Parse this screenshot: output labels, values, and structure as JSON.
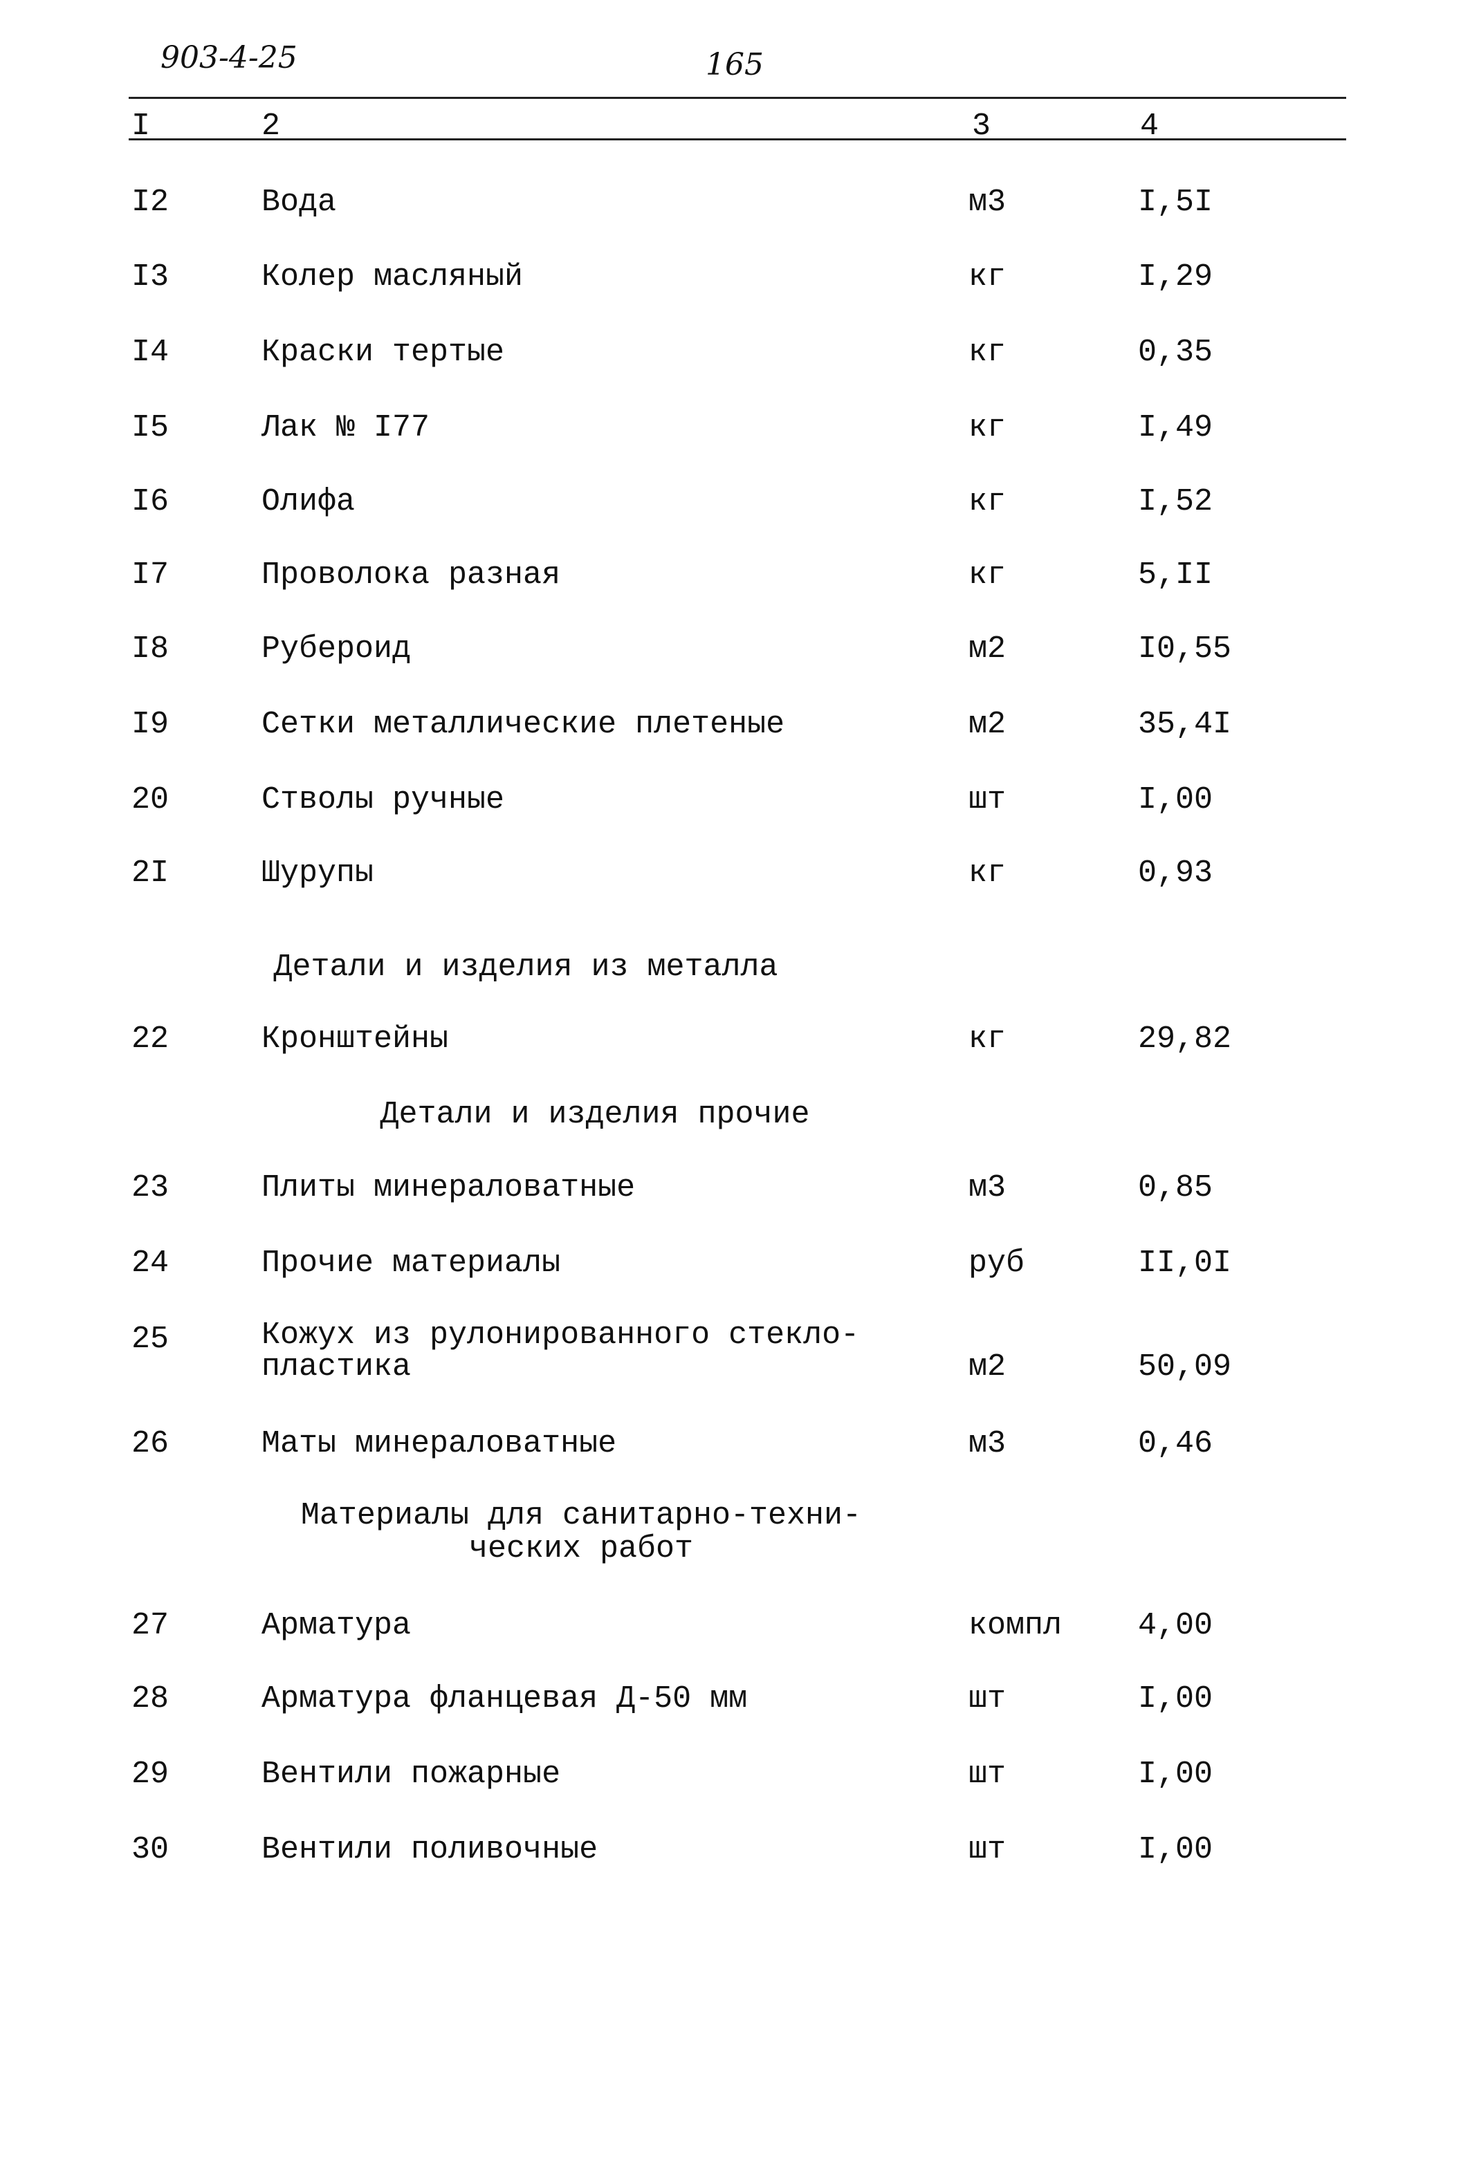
{
  "header": {
    "doc_code": "903-4-25",
    "page_number": "165",
    "columns": [
      "I",
      "2",
      "3",
      "4"
    ]
  },
  "rows": [
    {
      "num": "I2",
      "name": "Вода",
      "unit": "м3",
      "qty": "I,5I"
    },
    {
      "num": "I3",
      "name": "Колер масляный",
      "unit": "кг",
      "qty": "I,29"
    },
    {
      "num": "I4",
      "name": "Краски тертые",
      "unit": "кг",
      "qty": "0,35"
    },
    {
      "num": "I5",
      "name": "Лак № I77",
      "unit": "кг",
      "qty": "I,49"
    },
    {
      "num": "I6",
      "name": "Олифа",
      "unit": "кг",
      "qty": "I,52"
    },
    {
      "num": "I7",
      "name": "Проволока разная",
      "unit": "кг",
      "qty": "5,II"
    },
    {
      "num": "I8",
      "name": "Рубероид",
      "unit": "м2",
      "qty": "I0,55"
    },
    {
      "num": "I9",
      "name": "Сетки металлические плетеные",
      "unit": "м2",
      "qty": "35,4I"
    },
    {
      "num": "20",
      "name": "Стволы ручные",
      "unit": "шт",
      "qty": "I,00"
    },
    {
      "num": "2I",
      "name": "Шурупы",
      "unit": "кг",
      "qty": "0,93"
    },
    {
      "section": "Детали и изделия из металла"
    },
    {
      "num": "22",
      "name": "Кронштейны",
      "unit": "кг",
      "qty": "29,82"
    },
    {
      "section": "Детали и изделия прочие"
    },
    {
      "num": "23",
      "name": "Плиты минераловатные",
      "unit": "м3",
      "qty": "0,85"
    },
    {
      "num": "24",
      "name": "Прочие материалы",
      "unit": "руб",
      "qty": "II,0I"
    },
    {
      "num": "25",
      "name": "Кожух из рулонированного стекло-\nпластика",
      "unit": "м2",
      "qty": "50,09"
    },
    {
      "num": "26",
      "name": "Маты минераловатные",
      "unit": "м3",
      "qty": "0,46"
    },
    {
      "section": "Материалы для санитарно-техни-\nческих работ"
    },
    {
      "num": "27",
      "name": "Арматура",
      "unit": "компл",
      "qty": "4,00"
    },
    {
      "num": "28",
      "name": "Арматура фланцевая Д-50 мм",
      "unit": "шт",
      "qty": "I,00"
    },
    {
      "num": "29",
      "name": "Вентили пожарные",
      "unit": "шт",
      "qty": "I,00"
    },
    {
      "num": "30",
      "name": "Вентили поливочные",
      "unit": "шт",
      "qty": "I,00"
    }
  ]
}
